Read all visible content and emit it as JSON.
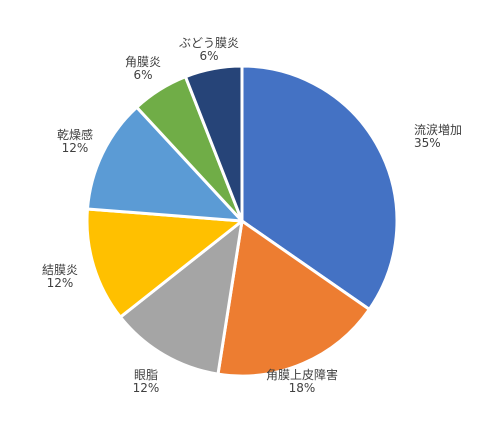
{
  "chart_data": {
    "type": "pie",
    "title": "",
    "start_angle_deg": 0,
    "direction": "clockwise",
    "slice_border_color": "#ffffff",
    "slices": [
      {
        "label": "流涙増加",
        "value": 35,
        "display": "35%",
        "color": "#4472C4"
      },
      {
        "label": "角膜上皮障害",
        "value": 18,
        "display": "18%",
        "color": "#ED7D31"
      },
      {
        "label": "眼脂",
        "value": 12,
        "display": "12%",
        "color": "#A5A5A5"
      },
      {
        "label": "結膜炎",
        "value": 12,
        "display": "12%",
        "color": "#FFC000"
      },
      {
        "label": "乾燥感",
        "value": 12,
        "display": "12%",
        "color": "#5B9BD5"
      },
      {
        "label": "角膜炎",
        "value": 6,
        "display": "6%",
        "color": "#70AD47"
      },
      {
        "label": "ぶどう膜炎",
        "value": 6,
        "display": "6%",
        "color": "#264478"
      }
    ]
  }
}
